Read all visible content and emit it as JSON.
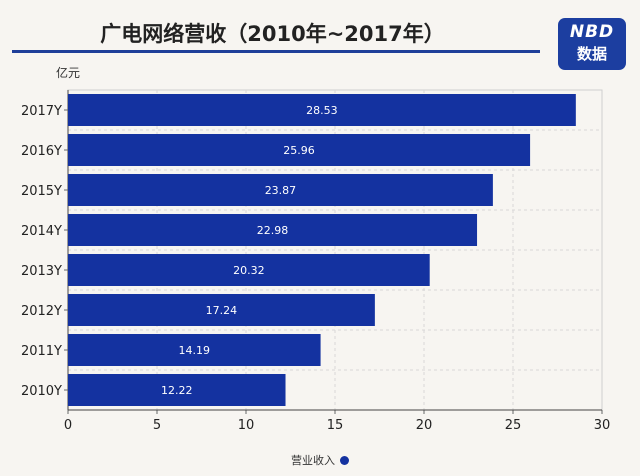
{
  "title": "广电网络营收（2010年~2017年）",
  "logo": {
    "line1": "NBD",
    "line2": "数据"
  },
  "colors": {
    "bar": "#1432a0",
    "accent": "#1f3f99"
  },
  "chart_data": {
    "type": "bar",
    "orientation": "horizontal",
    "title": "广电网络营收（2010年~2017年）",
    "unit_label": "亿元",
    "categories": [
      "2017Y",
      "2016Y",
      "2015Y",
      "2014Y",
      "2013Y",
      "2012Y",
      "2011Y",
      "2010Y"
    ],
    "series": [
      {
        "name": "营业收入",
        "values": [
          28.53,
          25.96,
          23.87,
          22.98,
          20.32,
          17.24,
          14.19,
          12.22
        ]
      }
    ],
    "data_labels": [
      "28.53",
      "25.96",
      "23.87",
      "22.98",
      "20.32",
      "17.24",
      "14.19",
      "12.22"
    ],
    "xlim": [
      0,
      30
    ],
    "xticks": [
      "0",
      "5",
      "10",
      "15",
      "20",
      "25",
      "30"
    ],
    "grid": true,
    "legend_position": "bottom"
  }
}
